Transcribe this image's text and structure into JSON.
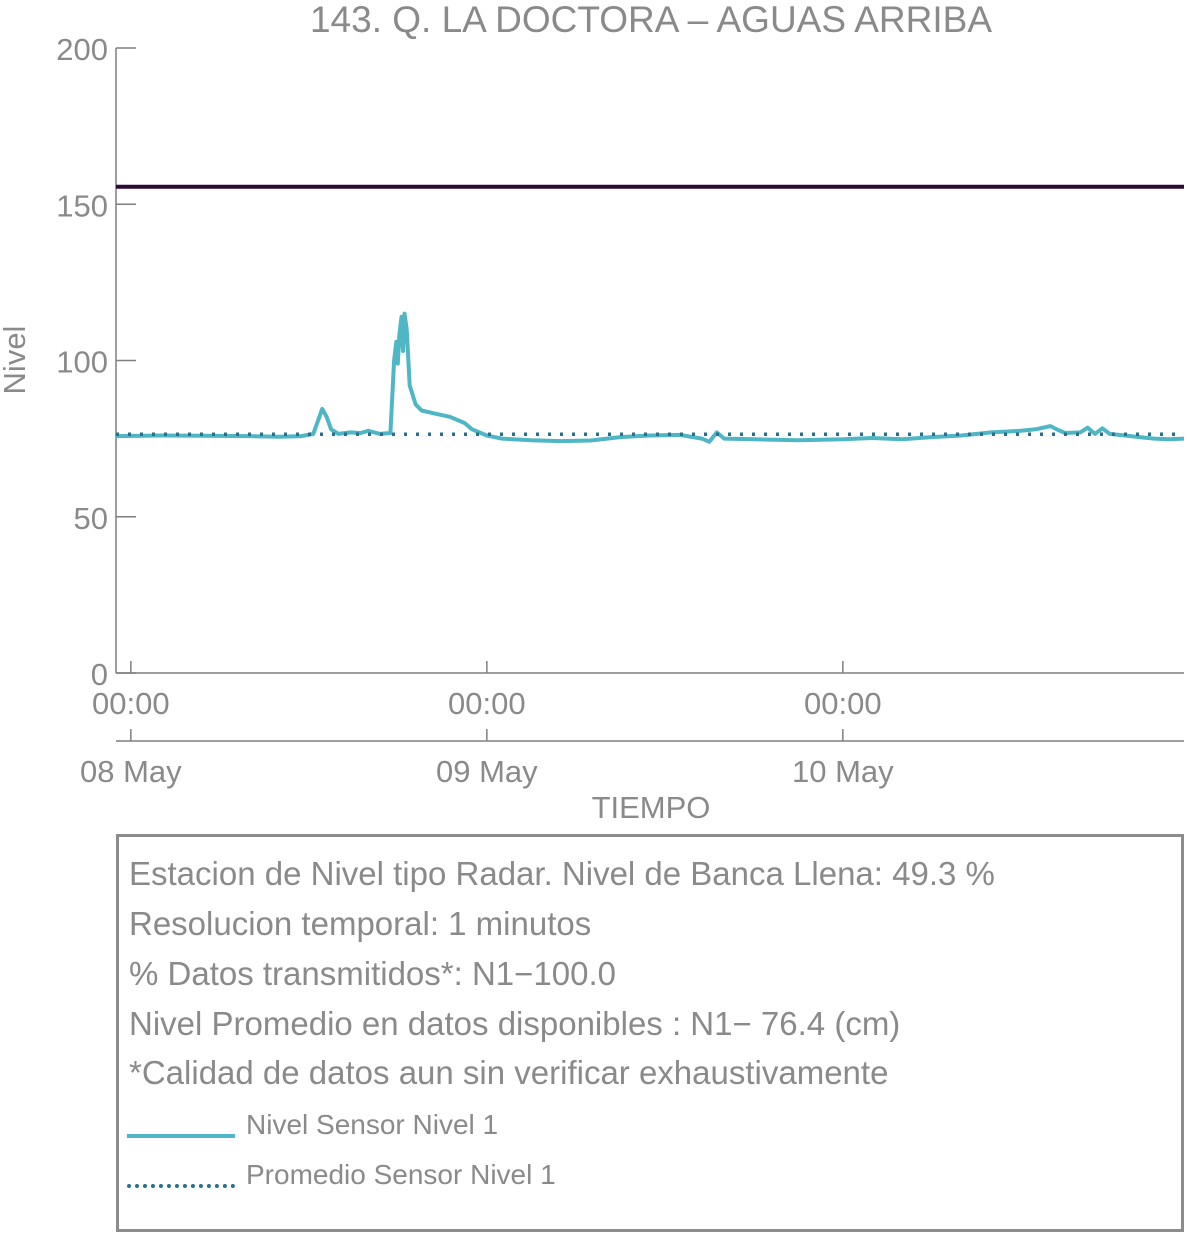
{
  "chart_data": {
    "type": "line",
    "title": "143. Q. LA DOCTORA – AGUAS ARRIBA",
    "xlabel": "TIEMPO",
    "ylabel": "Nivel",
    "ylim": [
      0,
      200
    ],
    "y_ticks": [
      0,
      50,
      100,
      150,
      200
    ],
    "x_unit": "hours since 2019-05-08 00:00",
    "x_ticks": [
      {
        "x": 0,
        "time": "00:00",
        "date": "08 May"
      },
      {
        "x": 24,
        "time": "00:00",
        "date": "09 May"
      },
      {
        "x": 48,
        "time": "00:00",
        "date": "10 May"
      }
    ],
    "xlim": [
      -1,
      71
    ],
    "grid": false,
    "reference_line": {
      "y": 155.6,
      "color": "#2b0a33"
    },
    "series": [
      {
        "name": "Nivel Sensor Nivel 1",
        "color": "#4fb6c6",
        "style": "solid",
        "points": [
          [
            -1,
            75.8
          ],
          [
            2,
            76.0
          ],
          [
            5,
            75.9
          ],
          [
            8,
            75.8
          ],
          [
            10,
            75.6
          ],
          [
            11.5,
            75.8
          ],
          [
            12.3,
            76.5
          ],
          [
            12.9,
            84.5
          ],
          [
            13.2,
            82
          ],
          [
            13.5,
            78
          ],
          [
            14,
            76.5
          ],
          [
            14.8,
            77
          ],
          [
            15.5,
            76.8
          ],
          [
            16,
            77.5
          ],
          [
            16.8,
            76.5
          ],
          [
            17.5,
            76.8
          ],
          [
            17.75,
            100
          ],
          [
            17.9,
            106
          ],
          [
            18.0,
            99
          ],
          [
            18.1,
            108
          ],
          [
            18.25,
            114
          ],
          [
            18.35,
            103
          ],
          [
            18.45,
            115
          ],
          [
            18.6,
            110
          ],
          [
            18.8,
            92
          ],
          [
            19.2,
            86
          ],
          [
            19.6,
            84
          ],
          [
            20.5,
            83
          ],
          [
            21.5,
            82
          ],
          [
            22.5,
            80
          ],
          [
            23,
            78
          ],
          [
            24,
            76
          ],
          [
            25,
            75
          ],
          [
            27,
            74.5
          ],
          [
            29,
            74.2
          ],
          [
            31,
            74.4
          ],
          [
            33,
            75.5
          ],
          [
            35,
            76
          ],
          [
            37,
            76.2
          ],
          [
            38.5,
            75
          ],
          [
            39,
            74
          ],
          [
            39.5,
            77
          ],
          [
            40,
            75
          ],
          [
            42,
            74.8
          ],
          [
            45,
            74.5
          ],
          [
            48,
            74.8
          ],
          [
            50,
            75.2
          ],
          [
            52,
            74.8
          ],
          [
            54,
            75.5
          ],
          [
            56,
            76
          ],
          [
            58,
            77
          ],
          [
            60,
            77.5
          ],
          [
            61,
            78
          ],
          [
            62,
            79
          ],
          [
            62.5,
            77.8
          ],
          [
            63,
            76.8
          ],
          [
            64,
            77
          ],
          [
            64.5,
            78.5
          ],
          [
            65,
            76.5
          ],
          [
            65.5,
            78.3
          ],
          [
            66,
            76.5
          ],
          [
            67,
            76
          ],
          [
            68,
            75.5
          ],
          [
            69,
            75
          ],
          [
            70,
            74.8
          ],
          [
            71,
            75
          ]
        ]
      },
      {
        "name": "Promedio Sensor Nivel 1",
        "color": "#2c6f8a",
        "style": "dotted",
        "points": [
          [
            -1,
            76.4
          ],
          [
            71,
            76.4
          ]
        ]
      }
    ]
  },
  "info": {
    "lines": [
      "Estacion de Nivel tipo Radar. Nivel de Banca Llena: 49.3 %",
      "Resolucion temporal: 1 minutos",
      "% Datos transmitidos*: N1−100.0",
      "Nivel Promedio en datos disponibles : N1− 76.4 (cm)",
      "*Calidad de datos aun sin verificar exhaustivamente"
    ],
    "legend": [
      {
        "label": "Nivel Sensor Nivel 1",
        "color": "#4fb6c6",
        "style": "solid"
      },
      {
        "label": "Promedio Sensor Nivel 1",
        "color": "#2c6f8a",
        "style": "dotted"
      }
    ]
  }
}
